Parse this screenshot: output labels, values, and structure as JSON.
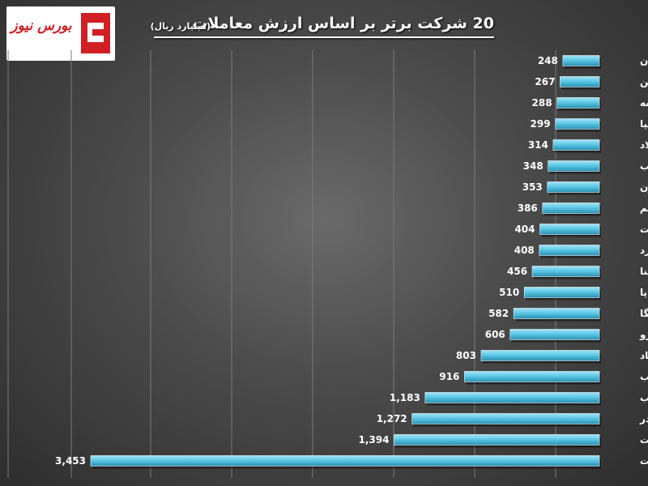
{
  "logo": {
    "text": "بورس نیوز"
  },
  "colors": {
    "bar": "#5cc8e6",
    "bar_dark": "#2a8fb0",
    "text": "#ffffff"
  },
  "chart_data": {
    "type": "bar",
    "orientation": "horizontal",
    "title": "20 شرکت برتر بر اساس ارزش معاملات",
    "subtitle": "(میلیارد ریال)",
    "categories": [
      "کیان",
      "خاذین",
      "کماسه",
      "شسپا",
      "فولاد",
      "وسکاب",
      "چکارن",
      "امین یکم",
      "ویست",
      "آکورد",
      "شپنا",
      "خساپا",
      "سمگا",
      "خودرو",
      "اعتماد",
      "های وب",
      "ذوب",
      "وبصادر",
      "وبملت",
      "وتجارت"
    ],
    "values": [
      248,
      267,
      288,
      299,
      314,
      348,
      353,
      386,
      404,
      408,
      456,
      510,
      582,
      606,
      803,
      916,
      1183,
      1272,
      1394,
      3453
    ],
    "value_labels": [
      "248",
      "267",
      "288",
      "299",
      "314",
      "348",
      "353",
      "386",
      "404",
      "408",
      "456",
      "510",
      "582",
      "606",
      "803",
      "916",
      "1,183",
      "1,272",
      "1,394",
      "3,453"
    ],
    "xlim": [
      0,
      3453
    ],
    "grid": true,
    "bars_grow_from": "right"
  }
}
